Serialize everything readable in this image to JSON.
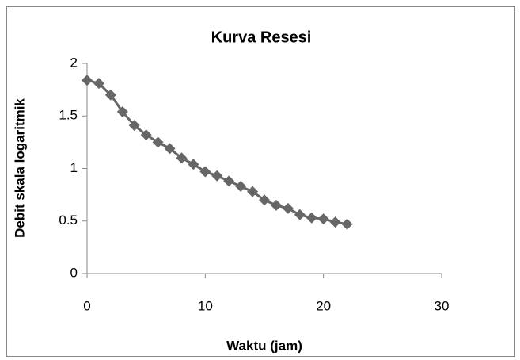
{
  "chart_data": {
    "type": "scatter-line",
    "title": "Kurva Resesi",
    "x_label": "Waktu (jam)",
    "y_label": "Debit skala logaritmik",
    "x": [
      0,
      1,
      2,
      3,
      4,
      5,
      6,
      7,
      8,
      9,
      10,
      11,
      12,
      13,
      14,
      15,
      16,
      17,
      18,
      19,
      20,
      21,
      22
    ],
    "values": [
      1.84,
      1.81,
      1.7,
      1.54,
      1.41,
      1.32,
      1.25,
      1.19,
      1.1,
      1.04,
      0.97,
      0.93,
      0.88,
      0.83,
      0.78,
      0.7,
      0.65,
      0.62,
      0.56,
      0.53,
      0.52,
      0.49,
      0.47
    ],
    "color": "#666666",
    "xlim": [
      0,
      30
    ],
    "xticks": [
      0,
      10,
      20,
      30
    ],
    "ylim": [
      0,
      2
    ],
    "yticks": [
      0,
      0.5,
      1,
      1.5,
      2
    ],
    "grid": false
  }
}
